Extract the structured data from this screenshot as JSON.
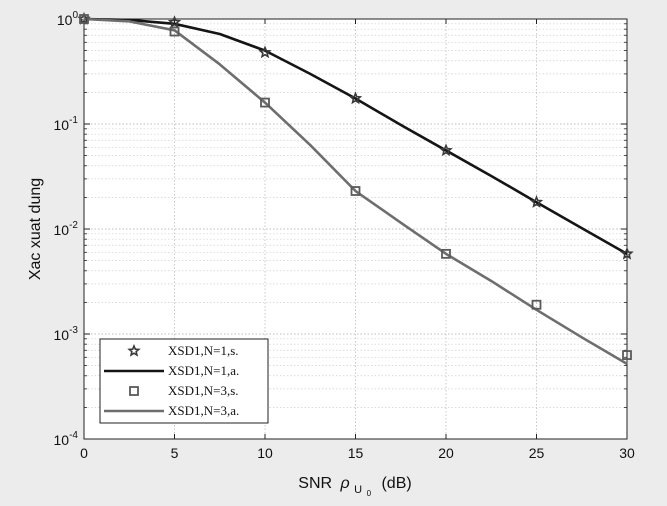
{
  "chart_data": {
    "type": "line",
    "title": "",
    "xlabel": "SNR",
    "xlabel_symbol": "ρ",
    "xlabel_subscript": "U",
    "xlabel_subsubscript": "0",
    "xlabel_unit": "(dB)",
    "ylabel": "Xac xuat dung",
    "xlim": [
      0,
      30
    ],
    "ylim": [
      0.0001,
      1
    ],
    "yscale": "log",
    "grid": true,
    "legend_position": "bottom-left",
    "x_ticks": [
      0,
      5,
      10,
      15,
      20,
      25,
      30
    ],
    "x_tick_labels": [
      "0",
      "5",
      "10",
      "15",
      "20",
      "25",
      "30"
    ],
    "y_ticks": [
      1,
      0.1,
      0.01,
      0.001,
      0.0001
    ],
    "y_tick_labels": [
      {
        "base": "10",
        "exp": "0"
      },
      {
        "base": "10",
        "exp": "-1"
      },
      {
        "base": "10",
        "exp": "-2"
      },
      {
        "base": "10",
        "exp": "-3"
      },
      {
        "base": "10",
        "exp": "-4"
      }
    ],
    "series": [
      {
        "name": "XSD1,N=1,s.",
        "style": "marker",
        "marker": "star",
        "color": "#3a3a3a",
        "x": [
          0,
          5,
          10,
          15,
          20,
          25,
          30
        ],
        "y": [
          1.0,
          0.93,
          0.48,
          0.175,
          0.056,
          0.018,
          0.0058
        ]
      },
      {
        "name": "XSD1,N=1,a.",
        "style": "line",
        "color": "#151515",
        "x": [
          0,
          2.5,
          5,
          7.5,
          10,
          12.5,
          15,
          17.5,
          20,
          22.5,
          25,
          27.5,
          30
        ],
        "y": [
          1.0,
          0.98,
          0.9,
          0.72,
          0.5,
          0.3,
          0.175,
          0.098,
          0.056,
          0.032,
          0.018,
          0.0102,
          0.0058
        ]
      },
      {
        "name": "XSD1,N=3,s.",
        "style": "marker",
        "marker": "square",
        "color": "#5a5a5a",
        "x": [
          0,
          5,
          10,
          15,
          20,
          25,
          30
        ],
        "y": [
          1.0,
          0.76,
          0.16,
          0.023,
          0.0058,
          0.0019,
          0.00063
        ]
      },
      {
        "name": "XSD1,N=3,a.",
        "style": "line",
        "color": "#6e6e6e",
        "x": [
          0,
          2.5,
          5,
          7.5,
          10,
          12.5,
          15,
          17.5,
          20,
          22.5,
          25,
          27.5,
          30
        ],
        "y": [
          1.0,
          0.95,
          0.78,
          0.37,
          0.16,
          0.063,
          0.023,
          0.0115,
          0.0058,
          0.0032,
          0.0017,
          0.00093,
          0.00052
        ]
      }
    ]
  }
}
